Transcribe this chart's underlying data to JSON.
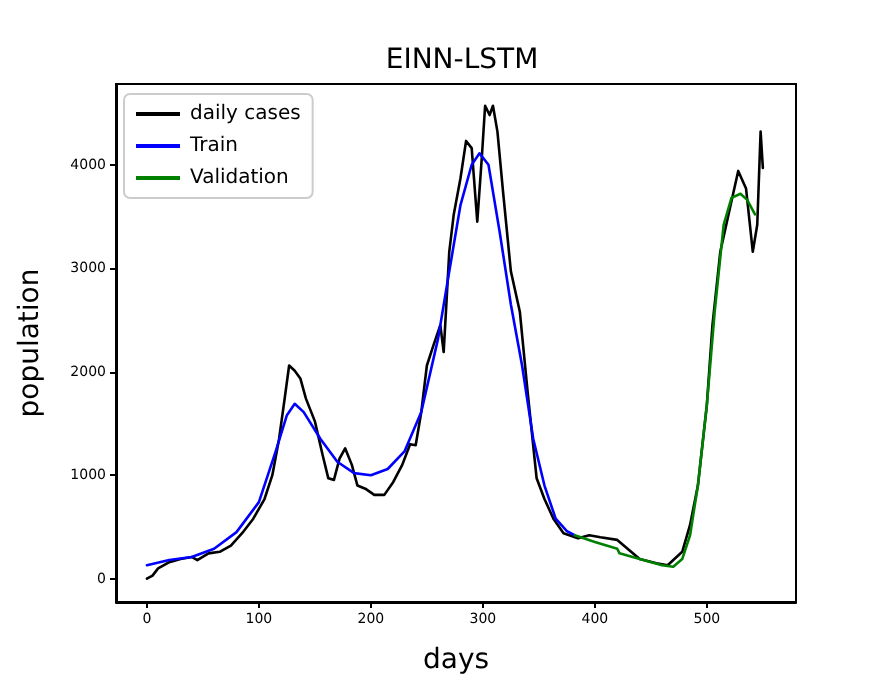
{
  "chart_data": {
    "type": "line",
    "title": "EINN-LSTM",
    "xlabel": "days",
    "ylabel": "population",
    "xlim": [
      -27.6,
      579.6
    ],
    "ylim": [
      -225,
      4780
    ],
    "xticks": [
      0,
      100,
      200,
      300,
      400,
      500
    ],
    "yticks": [
      0,
      1000,
      2000,
      3000,
      4000
    ],
    "grid": false,
    "legend": "top left",
    "marker": "none",
    "line_style": "solid",
    "series": [
      {
        "name": "daily cases",
        "color": "#000000",
        "x": [
          0,
          5,
          10,
          20,
          30,
          40,
          45,
          55,
          65,
          75,
          85,
          95,
          105,
          112,
          118,
          123,
          127,
          132,
          137,
          142,
          150,
          157,
          162,
          167,
          172,
          177,
          183,
          188,
          195,
          203,
          212,
          220,
          228,
          235,
          240,
          245,
          250,
          256,
          262,
          265,
          270,
          274,
          280,
          285,
          290,
          295,
          299,
          302,
          306,
          309,
          313,
          318,
          325,
          333,
          340,
          348,
          355,
          363,
          372,
          385,
          395,
          405,
          420,
          440,
          455,
          465,
          478,
          485,
          492,
          500,
          505,
          512,
          520,
          528,
          535,
          541,
          545,
          548,
          550
        ],
        "values": [
          0,
          30,
          100,
          160,
          190,
          210,
          180,
          245,
          260,
          320,
          440,
          580,
          770,
          1000,
          1350,
          1740,
          2060,
          2010,
          1935,
          1740,
          1520,
          1190,
          970,
          955,
          1160,
          1260,
          1100,
          900,
          870,
          810,
          810,
          935,
          1100,
          1300,
          1290,
          1610,
          2060,
          2260,
          2450,
          2190,
          3160,
          3520,
          3870,
          4230,
          4160,
          3450,
          4060,
          4570,
          4480,
          4570,
          4320,
          3740,
          2970,
          2580,
          1800,
          970,
          770,
          580,
          440,
          390,
          420,
          400,
          375,
          190,
          150,
          130,
          260,
          520,
          900,
          1680,
          2450,
          3160,
          3550,
          3940,
          3770,
          3160,
          3420,
          4320,
          3970
        ]
      },
      {
        "name": "Train",
        "color": "#0000ff",
        "x": [
          0,
          20,
          40,
          60,
          80,
          100,
          115,
          125,
          132,
          140,
          155,
          170,
          185,
          200,
          215,
          230,
          245,
          260,
          270,
          280,
          290,
          297,
          305,
          315,
          325,
          335,
          345,
          355,
          365,
          375,
          382
        ],
        "values": [
          130,
          180,
          210,
          290,
          450,
          740,
          1230,
          1580,
          1690,
          1610,
          1350,
          1130,
          1020,
          1000,
          1060,
          1230,
          1610,
          2320,
          2970,
          3610,
          4000,
          4110,
          4000,
          3350,
          2650,
          2060,
          1350,
          900,
          580,
          460,
          420
        ]
      },
      {
        "name": "Validation",
        "color": "#008000",
        "x": [
          382,
          400,
          420,
          422,
          440,
          460,
          470,
          478,
          485,
          492,
          500,
          507,
          515,
          522,
          530,
          536,
          543
        ],
        "values": [
          420,
          355,
          290,
          245,
          190,
          130,
          115,
          190,
          420,
          900,
          1680,
          2580,
          3420,
          3680,
          3720,
          3660,
          3520
        ]
      }
    ]
  }
}
